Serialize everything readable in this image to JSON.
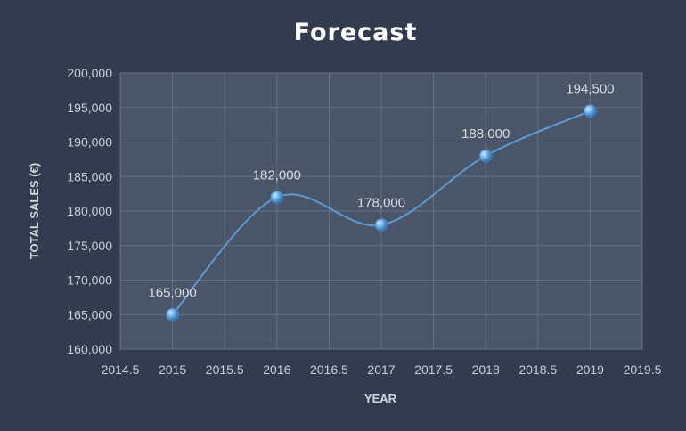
{
  "chart_data": {
    "type": "line",
    "title": "Forecast",
    "xlabel": "YEAR",
    "ylabel": "TOTAL SALES (€)",
    "x": [
      2015,
      2016,
      2017,
      2018,
      2019
    ],
    "values": [
      165000,
      182000,
      178000,
      188000,
      194500
    ],
    "data_labels": [
      "165,000",
      "182,000",
      "178,000",
      "188,000",
      "194,500"
    ],
    "xlim": [
      2014.5,
      2019.5
    ],
    "ylim": [
      160000,
      200000
    ],
    "x_ticks": [
      "2014.5",
      "2015",
      "2015.5",
      "2016",
      "2016.5",
      "2017",
      "2017.5",
      "2018",
      "2018.5",
      "2019",
      "2019.5"
    ],
    "y_ticks": [
      "160,000",
      "165,000",
      "170,000",
      "175,000",
      "180,000",
      "185,000",
      "190,000",
      "195,000",
      "200,000"
    ],
    "grid": true,
    "smooth": true,
    "colors": {
      "background": "#333c4e",
      "plot_area": "#4a5568",
      "grid": "#65718a",
      "line": "#5b9bd5",
      "marker": "#6fb3ec"
    }
  }
}
